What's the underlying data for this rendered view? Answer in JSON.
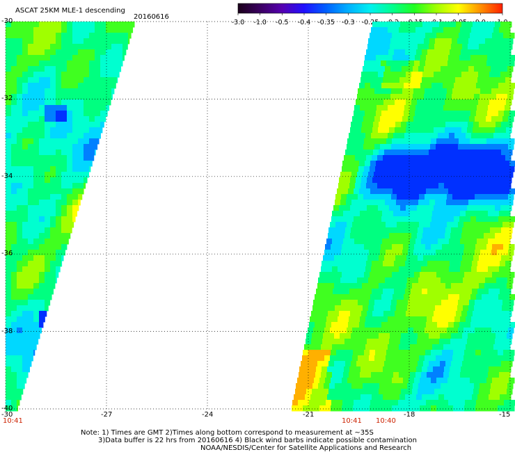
{
  "title": "ASCAT 25KM MLE-1 descending",
  "date": "20160616",
  "colorbar": {
    "labels": [
      "-3.0",
      "-1.0",
      "-0.5",
      "-0.4",
      "-0.35",
      "-0.3",
      "-0.25",
      "-0.2",
      "-0.15",
      "-0.1",
      "-0.05",
      "0.0",
      "1.0"
    ],
    "colors": [
      "#1a001a",
      "#3a0060",
      "#5500b0",
      "#2010ff",
      "#0060ff",
      "#00b0ff",
      "#00f0f0",
      "#00ff90",
      "#20ff20",
      "#a0ff00",
      "#ffff00",
      "#ff9000",
      "#ff2000"
    ]
  },
  "map": {
    "lat_labels": [
      "-30",
      "-32",
      "-34",
      "-36",
      "-38",
      "-40"
    ],
    "lon_labels": [
      "-30",
      "-27",
      "-24",
      "-21",
      "-18",
      "-15"
    ],
    "lat_range": [
      -40,
      -30
    ],
    "lon_range": [
      -30,
      -15
    ]
  },
  "swath_times": [
    "10:41",
    "10:41",
    "10:40"
  ],
  "notes": {
    "line1": "Note: 1) Times are GMT 2)Times along bottom correspond to measurement at ~35S",
    "line2": "3)Data buffer is 22 hrs from 20160616 4) Black wind barbs indicate possible contamination",
    "line3": "NOAA/NESDIS/Center for Satellite Applications and Research"
  }
}
